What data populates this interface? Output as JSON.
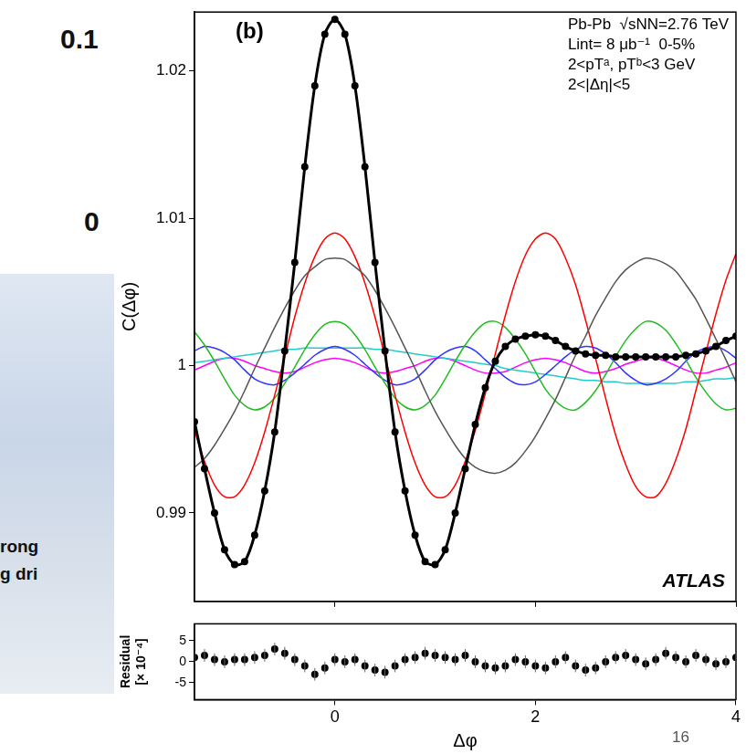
{
  "chart_data": [
    {
      "type": "line",
      "panel_label": "(b)",
      "annotations": [
        "Pb-Pb  √sNN=2.76 TeV",
        "Lint= 8 μb⁻¹  0-5%",
        "2<pTᵃ, pTᵇ<3 GeV",
        "2<|Δη|<5"
      ],
      "watermark": "ATLAS",
      "ylabel": "C(Δφ)",
      "x": [
        -1.4,
        -1.3,
        -1.2,
        -1.1,
        -1.0,
        -0.9,
        -0.8,
        -0.7,
        -0.6,
        -0.5,
        -0.4,
        -0.3,
        -0.2,
        -0.1,
        0,
        0.1,
        0.2,
        0.3,
        0.4,
        0.5,
        0.6,
        0.7,
        0.8,
        0.9,
        1.0,
        1.1,
        1.2,
        1.3,
        1.4,
        1.5,
        1.6,
        1.7,
        1.8,
        1.9,
        2.0,
        2.1,
        2.2,
        2.3,
        2.4,
        2.5,
        2.6,
        2.7,
        2.8,
        2.9,
        3.0,
        3.1,
        3.2,
        3.3,
        3.4,
        3.5,
        3.6,
        3.7,
        3.8,
        3.9,
        4.0
      ],
      "series": [
        {
          "color": "#000000",
          "marker": "circle",
          "line_style": "solid",
          "values": [
            0.9962,
            0.993,
            0.99,
            0.9875,
            0.9865,
            0.9867,
            0.9885,
            0.9915,
            0.9955,
            1.001,
            1.007,
            1.0135,
            1.019,
            1.0225,
            1.0235,
            1.0225,
            1.019,
            1.0135,
            1.007,
            1.001,
            0.9955,
            0.9915,
            0.9885,
            0.9867,
            0.9865,
            0.9875,
            0.99,
            0.993,
            0.996,
            0.9985,
            1.0003,
            1.0013,
            1.0018,
            1.002,
            1.0021,
            1.002,
            1.0017,
            1.0013,
            1.001,
            1.0008,
            1.0007,
            1.0007,
            1.0006,
            1.0006,
            1.0006,
            1.0006,
            1.0006,
            1.0006,
            1.0006,
            1.0007,
            1.0008,
            1.001,
            1.0013,
            1.0017,
            1.002
          ]
        },
        {
          "color": "#555555",
          "marker": "none",
          "line_style": "solid",
          "values": [
            0.9931,
            0.9937,
            0.9946,
            0.9957,
            0.9969,
            0.9983,
            0.9998,
            1.0012,
            1.0026,
            1.0039,
            1.0051,
            1.0061,
            1.0067,
            1.0072,
            1.0073,
            1.0072,
            1.0067,
            1.0061,
            1.0051,
            1.0039,
            1.0026,
            1.0012,
            0.9998,
            0.9983,
            0.9969,
            0.9957,
            0.9946,
            0.9937,
            0.9931,
            0.9928,
            0.9927,
            0.9929,
            0.9934,
            0.9942,
            0.9952,
            0.9964,
            0.9977,
            0.9992,
            1.0007,
            1.002,
            1.0034,
            1.0046,
            1.0057,
            1.0065,
            1.007,
            1.0073,
            1.0072,
            1.0069,
            1.0064,
            1.0055,
            1.0045,
            1.0032,
            1.0018,
            1.0004,
            0.9989
          ]
        },
        {
          "color": "#ff0000",
          "marker": "none",
          "line_style": "solid",
          "values": [
            0.9956,
            0.9935,
            0.9919,
            0.9911,
            0.9911,
            0.9919,
            0.9934,
            0.9955,
            0.998,
            1.0006,
            1.0033,
            1.0056,
            1.0074,
            1.0086,
            1.009,
            1.0086,
            1.0074,
            1.0056,
            1.0033,
            1.0006,
            0.998,
            0.9955,
            0.9934,
            0.9919,
            0.9911,
            0.9911,
            0.9919,
            0.9935,
            0.9956,
            0.9981,
            1.0008,
            1.0034,
            1.0057,
            1.0075,
            1.0086,
            1.009,
            1.0086,
            1.0073,
            1.0055,
            1.0031,
            1.0005,
            0.9978,
            0.9953,
            0.9933,
            0.9918,
            0.9911,
            0.9911,
            0.992,
            0.9936,
            0.9957,
            0.9983,
            1.0009,
            1.0035,
            1.0058,
            1.0076
          ]
        },
        {
          "color": "#22bb22",
          "marker": "none",
          "line_style": "solid",
          "values": [
            1.0023,
            1.0014,
            1.0003,
            0.9991,
            0.998,
            0.9973,
            0.997,
            0.9972,
            0.9978,
            0.9988,
            0.9999,
            1.0011,
            1.0021,
            1.0028,
            1.003,
            1.0028,
            1.0021,
            1.0011,
            0.9999,
            0.9988,
            0.9978,
            0.9972,
            0.997,
            0.9973,
            0.998,
            0.9991,
            1.0003,
            1.0014,
            1.0023,
            1.0029,
            1.003,
            1.0026,
            1.0018,
            1.0008,
            0.9996,
            0.9984,
            0.9976,
            0.9971,
            0.997,
            0.9975,
            0.9983,
            0.9994,
            1.0006,
            1.0017,
            1.0025,
            1.003,
            1.0029,
            1.0024,
            1.0015,
            1.0004,
            0.9992,
            0.9982,
            0.9974,
            0.997,
            0.9971
          ]
        },
        {
          "color": "#3333ff",
          "marker": "none",
          "line_style": "solid",
          "values": [
            1.001,
            1.0013,
            1.0012,
            1.0009,
            1.0004,
            0.9997,
            0.9991,
            0.9988,
            0.9987,
            0.999,
            0.9995,
            1.0001,
            1.0007,
            1.0011,
            1.0013,
            1.0011,
            1.0007,
            1.0001,
            0.9995,
            0.999,
            0.9987,
            0.9988,
            0.9991,
            0.9997,
            1.0004,
            1.0009,
            1.0012,
            1.0013,
            1.001,
            1.0004,
            0.9998,
            0.9992,
            0.9988,
            0.9987,
            0.9989,
            0.9994,
            1.0,
            1.0006,
            1.0011,
            1.0013,
            1.0012,
            1.0008,
            1.0002,
            0.9995,
            0.999,
            0.9987,
            0.9988,
            0.9991,
            0.9996,
            1.0003,
            1.0009,
            1.0012,
            1.0013,
            1.001,
            1.0005
          ]
        },
        {
          "color": "#22cccc",
          "marker": "none",
          "line_style": "solid",
          "values": [
            1.0002,
            1.0003,
            1.0004,
            1.0005,
            1.0006,
            1.0007,
            1.0008,
            1.0009,
            1.001,
            1.0011,
            1.0011,
            1.0012,
            1.0012,
            1.0012,
            1.0012,
            1.0012,
            1.0012,
            1.0012,
            1.0011,
            1.0011,
            1.001,
            1.0009,
            1.0008,
            1.0007,
            1.0006,
            1.0005,
            1.0004,
            1.0003,
            1.0002,
            1.0001,
            1.0,
            0.9998,
            0.9997,
            0.9996,
            0.9995,
            0.9994,
            0.9993,
            0.9992,
            0.9991,
            0.999,
            0.999,
            0.9989,
            0.9989,
            0.9988,
            0.9988,
            0.9988,
            0.9988,
            0.9988,
            0.9988,
            0.9989,
            0.9989,
            0.999,
            0.9991,
            0.9991,
            0.9992
          ]
        },
        {
          "color": "#ff00ff",
          "marker": "none",
          "line_style": "solid",
          "values": [
            0.9997,
            1.0,
            1.0003,
            1.0005,
            1.0005,
            1.0003,
            1.0,
            0.9998,
            0.9996,
            0.9995,
            0.9996,
            0.9999,
            1.0002,
            1.0004,
            1.0005,
            1.0004,
            1.0002,
            0.9999,
            0.9996,
            0.9995,
            0.9996,
            0.9998,
            1.0,
            1.0003,
            1.0005,
            1.0005,
            1.0003,
            1.0,
            0.9997,
            0.9995,
            0.9995,
            0.9996,
            0.9999,
            1.0002,
            1.0004,
            1.0005,
            1.0004,
            1.0002,
            0.9999,
            0.9996,
            0.9995,
            0.9996,
            0.9998,
            1.0001,
            1.0003,
            1.0005,
            1.0005,
            1.0003,
            1.0,
            0.9997,
            0.9995,
            0.9995,
            0.9997,
            0.9999,
            1.0002
          ]
        }
      ],
      "xlim": [
        -1.4,
        4.0
      ],
      "xticks": [
        0,
        2,
        4
      ],
      "ylim": [
        0.984,
        1.024
      ],
      "yticks": [
        0.99,
        1,
        1.01,
        1.02
      ],
      "grid": false,
      "tick_labels": "y"
    },
    {
      "type": "scatter",
      "xlabel": "Δφ",
      "ylabel": [
        "Residual",
        "[× 10⁻⁴]"
      ],
      "x": [
        -1.4,
        -1.3,
        -1.2,
        -1.1,
        -1.0,
        -0.9,
        -0.8,
        -0.7,
        -0.6,
        -0.5,
        -0.4,
        -0.3,
        -0.2,
        -0.1,
        0,
        0.1,
        0.2,
        0.3,
        0.4,
        0.5,
        0.6,
        0.7,
        0.8,
        0.9,
        1.0,
        1.1,
        1.2,
        1.3,
        1.4,
        1.5,
        1.6,
        1.7,
        1.8,
        1.9,
        2.0,
        2.1,
        2.2,
        2.3,
        2.4,
        2.5,
        2.6,
        2.7,
        2.8,
        2.9,
        3.0,
        3.1,
        3.2,
        3.3,
        3.4,
        3.5,
        3.6,
        3.7,
        3.8,
        3.9,
        4.0
      ],
      "series": [
        {
          "color": "#000000",
          "marker": "circle",
          "line_style": "none",
          "values": [
            1,
            1.5,
            0.5,
            0,
            0.5,
            0.5,
            1,
            1.5,
            3,
            2,
            0.5,
            -1,
            -3,
            -1.5,
            0.5,
            0,
            0.5,
            -1,
            -2,
            -2.5,
            -1,
            0.5,
            1,
            2,
            1.5,
            1,
            0.5,
            1.5,
            0,
            -1,
            -1.5,
            -1,
            0.5,
            0,
            -1,
            -1.5,
            0,
            1,
            -1,
            -2,
            -1.5,
            0,
            1,
            1.5,
            0.5,
            -0.5,
            0.5,
            2,
            1,
            0,
            1.5,
            0.5,
            -0.5,
            0,
            1
          ],
          "errors": [
            1.5,
            1.5,
            1.5,
            1.5,
            1.5,
            1.5,
            1.5,
            1.5,
            1.5,
            1.5,
            1.5,
            1.5,
            1.5,
            1.5,
            1.5,
            1.5,
            1.5,
            1.5,
            1.5,
            1.5,
            1.5,
            1.5,
            1.5,
            1.5,
            1.5,
            1.5,
            1.5,
            1.5,
            1.5,
            1.5,
            1.5,
            1.5,
            1.5,
            1.5,
            1.5,
            1.5,
            1.5,
            1.5,
            1.5,
            1.5,
            1.5,
            1.5,
            1.5,
            1.5,
            1.5,
            1.5,
            1.5,
            1.5,
            1.5,
            1.5,
            1.5,
            1.5,
            1.5,
            1.5,
            1.5
          ]
        }
      ],
      "xlim": [
        -1.4,
        4.0
      ],
      "xticks": [
        0,
        2,
        4
      ],
      "ylim": [
        -9,
        9
      ],
      "yticks": [
        -5,
        0,
        5
      ],
      "grid": false
    }
  ],
  "slide_text": [
    "0.1",
    "0",
    "rong",
    "g dri"
  ],
  "page_number": "16"
}
